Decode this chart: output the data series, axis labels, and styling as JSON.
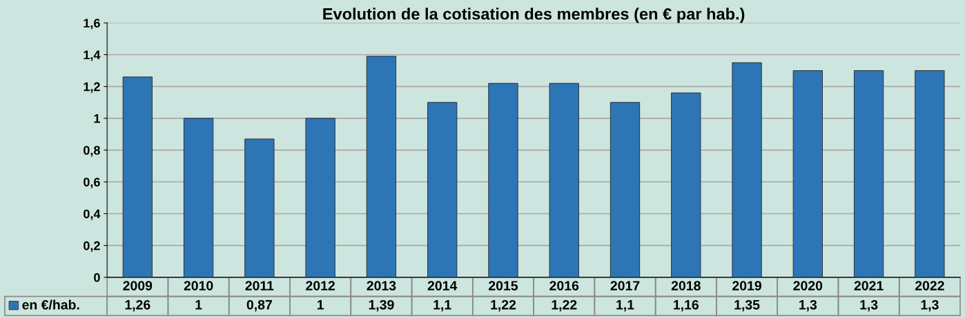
{
  "chart_data": {
    "type": "bar",
    "title": "Evolution de la cotisation des membres (en € par hab.)",
    "categories": [
      "2009",
      "2010",
      "2011",
      "2012",
      "2013",
      "2014",
      "2015",
      "2016",
      "2017",
      "2018",
      "2019",
      "2020",
      "2021",
      "2022"
    ],
    "series": [
      {
        "name": "en €/hab.",
        "color": "#2e75b6",
        "values": [
          1.26,
          1,
          0.87,
          1,
          1.39,
          1.1,
          1.22,
          1.22,
          1.1,
          1.16,
          1.35,
          1.3,
          1.3,
          1.3
        ],
        "value_labels": [
          "1,26",
          "1",
          "0,87",
          "1",
          "1,39",
          "1,1",
          "1,22",
          "1,22",
          "1,1",
          "1,16",
          "1,35",
          "1,3",
          "1,3",
          "1,3"
        ]
      }
    ],
    "ylim": [
      0,
      1.6
    ],
    "yticks": [
      0,
      {
        "value": 0.2,
        "label": "0,2"
      },
      {
        "value": 0.4,
        "label": "0,4"
      },
      {
        "value": 0.6,
        "label": "0,6"
      },
      {
        "value": 0.8,
        "label": "0,8"
      },
      1,
      {
        "value": 1.2,
        "label": "1,2"
      },
      {
        "value": 1.4,
        "label": "1,4"
      },
      {
        "value": 1.6,
        "label": "1,6"
      }
    ],
    "grid": "y",
    "legend": "bottom"
  }
}
